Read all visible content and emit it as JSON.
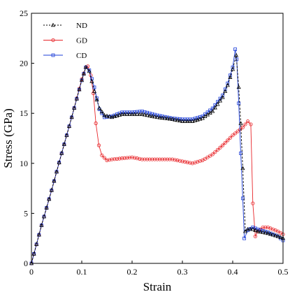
{
  "chart_data": {
    "type": "line",
    "xlabel": "Strain",
    "ylabel": "Stress (GPa)",
    "xlim": [
      0,
      0.5
    ],
    "ylim": [
      0,
      25
    ],
    "xticks": [
      0,
      0.1,
      0.2,
      0.3,
      0.4,
      0.5
    ],
    "yticks": [
      0,
      5,
      10,
      15,
      20,
      25
    ],
    "xtick_labels": [
      "0",
      "0.1",
      "0.2",
      "0.3",
      "0.4",
      "0.5"
    ],
    "ytick_labels": [
      "0",
      "5",
      "10",
      "15",
      "20",
      "25"
    ],
    "grid": false,
    "legend_position": "top-left",
    "series": [
      {
        "name": "ND",
        "color": "#000000",
        "marker": "triangle",
        "line": "dashed",
        "points": [
          [
            0,
            0
          ],
          [
            0.02,
            3.8
          ],
          [
            0.04,
            7.3
          ],
          [
            0.06,
            11.0
          ],
          [
            0.08,
            14.6
          ],
          [
            0.1,
            18.3
          ],
          [
            0.108,
            19.6
          ],
          [
            0.115,
            19.2
          ],
          [
            0.125,
            17.2
          ],
          [
            0.135,
            15.5
          ],
          [
            0.145,
            14.8
          ],
          [
            0.16,
            14.6
          ],
          [
            0.18,
            14.9
          ],
          [
            0.2,
            14.9
          ],
          [
            0.22,
            14.9
          ],
          [
            0.25,
            14.6
          ],
          [
            0.28,
            14.4
          ],
          [
            0.3,
            14.2
          ],
          [
            0.32,
            14.2
          ],
          [
            0.34,
            14.5
          ],
          [
            0.36,
            15.2
          ],
          [
            0.38,
            16.6
          ],
          [
            0.39,
            17.8
          ],
          [
            0.4,
            19.4
          ],
          [
            0.407,
            20.8
          ],
          [
            0.412,
            17.6
          ],
          [
            0.416,
            14.0
          ],
          [
            0.42,
            9.5
          ],
          [
            0.425,
            3.2
          ],
          [
            0.43,
            3.4
          ],
          [
            0.44,
            3.4
          ],
          [
            0.45,
            3.2
          ],
          [
            0.47,
            3.0
          ],
          [
            0.49,
            2.7
          ],
          [
            0.5,
            2.5
          ]
        ]
      },
      {
        "name": "GD",
        "color": "#e8262a",
        "marker": "circle",
        "line": "solid",
        "points": [
          [
            0,
            0
          ],
          [
            0.02,
            3.8
          ],
          [
            0.04,
            7.3
          ],
          [
            0.06,
            11.0
          ],
          [
            0.08,
            14.6
          ],
          [
            0.1,
            18.4
          ],
          [
            0.108,
            19.6
          ],
          [
            0.112,
            19.7
          ],
          [
            0.118,
            18.8
          ],
          [
            0.123,
            17.0
          ],
          [
            0.128,
            14.0
          ],
          [
            0.134,
            11.8
          ],
          [
            0.14,
            10.8
          ],
          [
            0.15,
            10.3
          ],
          [
            0.16,
            10.4
          ],
          [
            0.18,
            10.5
          ],
          [
            0.2,
            10.6
          ],
          [
            0.22,
            10.4
          ],
          [
            0.24,
            10.4
          ],
          [
            0.26,
            10.4
          ],
          [
            0.28,
            10.4
          ],
          [
            0.3,
            10.2
          ],
          [
            0.32,
            10.0
          ],
          [
            0.34,
            10.3
          ],
          [
            0.36,
            10.9
          ],
          [
            0.38,
            11.8
          ],
          [
            0.4,
            12.8
          ],
          [
            0.42,
            13.6
          ],
          [
            0.43,
            14.2
          ],
          [
            0.436,
            13.9
          ],
          [
            0.44,
            6.0
          ],
          [
            0.445,
            2.7
          ],
          [
            0.45,
            3.2
          ],
          [
            0.46,
            3.6
          ],
          [
            0.47,
            3.6
          ],
          [
            0.48,
            3.4
          ],
          [
            0.49,
            3.2
          ],
          [
            0.5,
            2.9
          ]
        ]
      },
      {
        "name": "CD",
        "color": "#1e3fd8",
        "marker": "square",
        "line": "solid",
        "points": [
          [
            0,
            0
          ],
          [
            0.02,
            3.8
          ],
          [
            0.04,
            7.3
          ],
          [
            0.06,
            11.0
          ],
          [
            0.08,
            14.6
          ],
          [
            0.1,
            18.3
          ],
          [
            0.108,
            19.6
          ],
          [
            0.115,
            19.3
          ],
          [
            0.125,
            17.6
          ],
          [
            0.135,
            15.4
          ],
          [
            0.145,
            14.6
          ],
          [
            0.16,
            14.7
          ],
          [
            0.18,
            15.1
          ],
          [
            0.2,
            15.1
          ],
          [
            0.22,
            15.2
          ],
          [
            0.25,
            14.8
          ],
          [
            0.28,
            14.5
          ],
          [
            0.3,
            14.4
          ],
          [
            0.32,
            14.4
          ],
          [
            0.34,
            14.7
          ],
          [
            0.36,
            15.5
          ],
          [
            0.38,
            16.8
          ],
          [
            0.39,
            18.0
          ],
          [
            0.4,
            19.6
          ],
          [
            0.405,
            21.4
          ],
          [
            0.408,
            20.4
          ],
          [
            0.412,
            16.0
          ],
          [
            0.416,
            11.0
          ],
          [
            0.42,
            6.5
          ],
          [
            0.423,
            2.5
          ],
          [
            0.43,
            3.3
          ],
          [
            0.44,
            3.6
          ],
          [
            0.45,
            3.4
          ],
          [
            0.47,
            3.1
          ],
          [
            0.49,
            2.7
          ],
          [
            0.5,
            2.3
          ]
        ]
      }
    ]
  }
}
